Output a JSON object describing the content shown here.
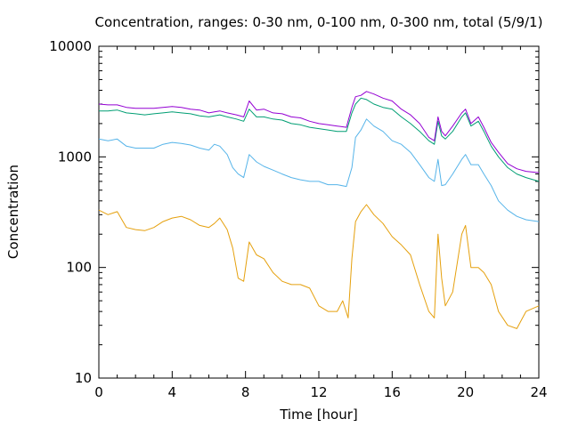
{
  "chart_data": {
    "type": "line",
    "title": "Concentration, ranges: 0-30 nm, 0-100 nm, 0-300 nm, total (5/9/1)",
    "xlabel": "Time [hour]",
    "ylabel": "Concentration",
    "xlim": [
      0,
      24
    ],
    "ylim": [
      10,
      10000
    ],
    "y_scale": "log",
    "x_ticks": [
      0,
      4,
      8,
      12,
      16,
      20,
      24
    ],
    "y_ticks": [
      10,
      100,
      1000,
      10000
    ],
    "grid": false,
    "legend": "none",
    "series": [
      {
        "color": "#e5a00d",
        "points": [
          [
            0,
            330
          ],
          [
            0.5,
            300
          ],
          [
            1,
            320
          ],
          [
            1.5,
            230
          ],
          [
            2,
            220
          ],
          [
            2.5,
            215
          ],
          [
            3,
            230
          ],
          [
            3.5,
            260
          ],
          [
            4,
            280
          ],
          [
            4.5,
            290
          ],
          [
            5,
            270
          ],
          [
            5.5,
            240
          ],
          [
            6,
            230
          ],
          [
            6.3,
            250
          ],
          [
            6.6,
            280
          ],
          [
            7,
            220
          ],
          [
            7.3,
            150
          ],
          [
            7.6,
            80
          ],
          [
            7.9,
            75
          ],
          [
            8.2,
            170
          ],
          [
            8.6,
            130
          ],
          [
            9,
            120
          ],
          [
            9.5,
            90
          ],
          [
            10,
            75
          ],
          [
            10.5,
            70
          ],
          [
            11,
            70
          ],
          [
            11.5,
            65
          ],
          [
            12,
            45
          ],
          [
            12.5,
            40
          ],
          [
            13,
            40
          ],
          [
            13.3,
            50
          ],
          [
            13.6,
            35
          ],
          [
            13.8,
            120
          ],
          [
            14,
            260
          ],
          [
            14.3,
            320
          ],
          [
            14.6,
            370
          ],
          [
            15,
            300
          ],
          [
            15.5,
            250
          ],
          [
            16,
            190
          ],
          [
            16.5,
            160
          ],
          [
            17,
            130
          ],
          [
            17.5,
            70
          ],
          [
            18,
            40
          ],
          [
            18.3,
            35
          ],
          [
            18.5,
            200
          ],
          [
            18.7,
            80
          ],
          [
            18.9,
            45
          ],
          [
            19.3,
            60
          ],
          [
            19.8,
            200
          ],
          [
            20,
            240
          ],
          [
            20.3,
            100
          ],
          [
            20.7,
            100
          ],
          [
            21,
            90
          ],
          [
            21.4,
            70
          ],
          [
            21.8,
            40
          ],
          [
            22.3,
            30
          ],
          [
            22.8,
            28
          ],
          [
            23.3,
            40
          ],
          [
            24,
            45
          ]
        ]
      },
      {
        "color": "#56b4e9",
        "points": [
          [
            0,
            1450
          ],
          [
            0.5,
            1400
          ],
          [
            1,
            1450
          ],
          [
            1.5,
            1250
          ],
          [
            2,
            1200
          ],
          [
            2.5,
            1200
          ],
          [
            3,
            1200
          ],
          [
            3.5,
            1300
          ],
          [
            4,
            1350
          ],
          [
            4.5,
            1320
          ],
          [
            5,
            1280
          ],
          [
            5.5,
            1200
          ],
          [
            6,
            1150
          ],
          [
            6.3,
            1300
          ],
          [
            6.6,
            1250
          ],
          [
            7,
            1050
          ],
          [
            7.3,
            800
          ],
          [
            7.6,
            700
          ],
          [
            7.9,
            650
          ],
          [
            8.2,
            1050
          ],
          [
            8.6,
            900
          ],
          [
            9,
            820
          ],
          [
            9.5,
            760
          ],
          [
            10,
            700
          ],
          [
            10.5,
            650
          ],
          [
            11,
            620
          ],
          [
            11.5,
            600
          ],
          [
            12,
            600
          ],
          [
            12.5,
            560
          ],
          [
            13,
            560
          ],
          [
            13.5,
            540
          ],
          [
            13.8,
            800
          ],
          [
            14,
            1500
          ],
          [
            14.3,
            1750
          ],
          [
            14.6,
            2200
          ],
          [
            15,
            1900
          ],
          [
            15.5,
            1700
          ],
          [
            16,
            1400
          ],
          [
            16.5,
            1300
          ],
          [
            17,
            1100
          ],
          [
            17.5,
            850
          ],
          [
            18,
            650
          ],
          [
            18.3,
            600
          ],
          [
            18.5,
            950
          ],
          [
            18.7,
            550
          ],
          [
            18.9,
            560
          ],
          [
            19.3,
            700
          ],
          [
            19.8,
            950
          ],
          [
            20,
            1050
          ],
          [
            20.3,
            850
          ],
          [
            20.7,
            850
          ],
          [
            21,
            700
          ],
          [
            21.4,
            550
          ],
          [
            21.8,
            400
          ],
          [
            22.3,
            330
          ],
          [
            22.8,
            290
          ],
          [
            23.3,
            270
          ],
          [
            24,
            260
          ]
        ]
      },
      {
        "color": "#009e73",
        "points": [
          [
            0,
            2600
          ],
          [
            0.5,
            2600
          ],
          [
            1,
            2650
          ],
          [
            1.5,
            2500
          ],
          [
            2,
            2450
          ],
          [
            2.5,
            2400
          ],
          [
            3,
            2450
          ],
          [
            3.5,
            2500
          ],
          [
            4,
            2550
          ],
          [
            4.5,
            2500
          ],
          [
            5,
            2450
          ],
          [
            5.5,
            2350
          ],
          [
            6,
            2300
          ],
          [
            6.3,
            2350
          ],
          [
            6.6,
            2400
          ],
          [
            7,
            2300
          ],
          [
            7.5,
            2200
          ],
          [
            7.9,
            2100
          ],
          [
            8.2,
            2700
          ],
          [
            8.6,
            2300
          ],
          [
            9,
            2300
          ],
          [
            9.5,
            2200
          ],
          [
            10,
            2150
          ],
          [
            10.5,
            2000
          ],
          [
            11,
            1950
          ],
          [
            11.5,
            1850
          ],
          [
            12,
            1800
          ],
          [
            12.5,
            1750
          ],
          [
            13,
            1700
          ],
          [
            13.5,
            1700
          ],
          [
            13.8,
            2500
          ],
          [
            14,
            3000
          ],
          [
            14.3,
            3400
          ],
          [
            14.6,
            3300
          ],
          [
            15,
            3000
          ],
          [
            15.5,
            2800
          ],
          [
            16,
            2700
          ],
          [
            16.5,
            2300
          ],
          [
            17,
            2000
          ],
          [
            17.5,
            1700
          ],
          [
            18,
            1400
          ],
          [
            18.3,
            1300
          ],
          [
            18.5,
            2100
          ],
          [
            18.7,
            1550
          ],
          [
            18.9,
            1450
          ],
          [
            19.3,
            1700
          ],
          [
            19.8,
            2300
          ],
          [
            20,
            2500
          ],
          [
            20.3,
            1900
          ],
          [
            20.7,
            2100
          ],
          [
            21,
            1700
          ],
          [
            21.4,
            1250
          ],
          [
            21.8,
            1000
          ],
          [
            22.3,
            800
          ],
          [
            22.8,
            700
          ],
          [
            23.3,
            650
          ],
          [
            24,
            600
          ]
        ]
      },
      {
        "color": "#9400d3",
        "points": [
          [
            0,
            3000
          ],
          [
            0.5,
            2950
          ],
          [
            1,
            2950
          ],
          [
            1.5,
            2800
          ],
          [
            2,
            2750
          ],
          [
            2.5,
            2750
          ],
          [
            3,
            2750
          ],
          [
            3.5,
            2800
          ],
          [
            4,
            2850
          ],
          [
            4.5,
            2800
          ],
          [
            5,
            2700
          ],
          [
            5.5,
            2650
          ],
          [
            6,
            2500
          ],
          [
            6.3,
            2550
          ],
          [
            6.6,
            2600
          ],
          [
            7,
            2500
          ],
          [
            7.5,
            2400
          ],
          [
            7.9,
            2300
          ],
          [
            8.2,
            3200
          ],
          [
            8.6,
            2650
          ],
          [
            9,
            2700
          ],
          [
            9.5,
            2500
          ],
          [
            10,
            2450
          ],
          [
            10.5,
            2300
          ],
          [
            11,
            2250
          ],
          [
            11.5,
            2100
          ],
          [
            12,
            2000
          ],
          [
            12.5,
            1950
          ],
          [
            13,
            1900
          ],
          [
            13.5,
            1850
          ],
          [
            13.8,
            2800
          ],
          [
            14,
            3500
          ],
          [
            14.3,
            3600
          ],
          [
            14.6,
            3900
          ],
          [
            15,
            3700
          ],
          [
            15.5,
            3400
          ],
          [
            16,
            3200
          ],
          [
            16.5,
            2700
          ],
          [
            17,
            2400
          ],
          [
            17.5,
            2000
          ],
          [
            18,
            1500
          ],
          [
            18.3,
            1400
          ],
          [
            18.5,
            2300
          ],
          [
            18.7,
            1700
          ],
          [
            18.9,
            1550
          ],
          [
            19.3,
            1900
          ],
          [
            19.8,
            2500
          ],
          [
            20,
            2700
          ],
          [
            20.3,
            2000
          ],
          [
            20.7,
            2300
          ],
          [
            21,
            1850
          ],
          [
            21.4,
            1350
          ],
          [
            21.8,
            1100
          ],
          [
            22.3,
            870
          ],
          [
            22.8,
            780
          ],
          [
            23.3,
            740
          ],
          [
            24,
            720
          ]
        ]
      }
    ]
  }
}
